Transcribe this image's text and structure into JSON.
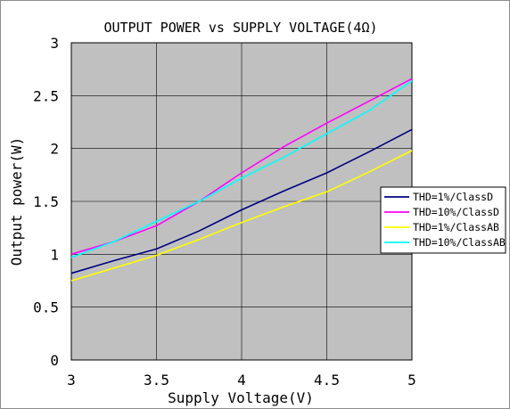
{
  "chart_data": {
    "type": "line",
    "title": "OUTPUT POWER vs SUPPLY VOLTAGE(4Ω)",
    "xlabel": "Supply Voltage(V)",
    "ylabel": "Output power(W)",
    "xlim": [
      3,
      5
    ],
    "ylim": [
      0,
      3
    ],
    "x_ticks": [
      {
        "value": 3,
        "label": "3"
      },
      {
        "value": 3.5,
        "label": "3.5"
      },
      {
        "value": 4,
        "label": "4"
      },
      {
        "value": 4.5,
        "label": "4.5"
      },
      {
        "value": 5,
        "label": "5"
      }
    ],
    "y_ticks": [
      {
        "value": 0,
        "label": "0"
      },
      {
        "value": 0.5,
        "label": "0.5"
      },
      {
        "value": 1,
        "label": "1"
      },
      {
        "value": 1.5,
        "label": "1.5"
      },
      {
        "value": 2,
        "label": "2"
      },
      {
        "value": 2.5,
        "label": "2.5"
      },
      {
        "value": 3,
        "label": "3"
      }
    ],
    "grid": true,
    "legend_position": "right",
    "plot_background": "#c0c0c0",
    "series": [
      {
        "name": "THD=1%/ClassD",
        "color": "#000080",
        "x": [
          3,
          3.25,
          3.5,
          3.75,
          4,
          4.25,
          4.5,
          4.75,
          5
        ],
        "y": [
          0.82,
          0.94,
          1.05,
          1.22,
          1.42,
          1.6,
          1.77,
          1.97,
          2.18
        ]
      },
      {
        "name": "THD=10%/ClassD",
        "color": "#ff00ff",
        "x": [
          3,
          3.25,
          3.5,
          3.75,
          4,
          4.25,
          4.5,
          4.75,
          5
        ],
        "y": [
          1.0,
          1.12,
          1.27,
          1.5,
          1.77,
          2.02,
          2.24,
          2.45,
          2.66
        ]
      },
      {
        "name": "THD=1%/ClassAB",
        "color": "#ffff00",
        "x": [
          3,
          3.25,
          3.5,
          3.75,
          4,
          4.25,
          4.5,
          4.75,
          5
        ],
        "y": [
          0.75,
          0.87,
          0.99,
          1.14,
          1.3,
          1.45,
          1.59,
          1.78,
          1.98
        ]
      },
      {
        "name": "THD=10%/ClassAB",
        "color": "#00ffff",
        "x": [
          3,
          3.25,
          3.5,
          3.75,
          4,
          4.25,
          4.5,
          4.75,
          5
        ],
        "y": [
          0.97,
          1.12,
          1.31,
          1.5,
          1.72,
          1.92,
          2.14,
          2.36,
          2.64
        ]
      }
    ]
  }
}
